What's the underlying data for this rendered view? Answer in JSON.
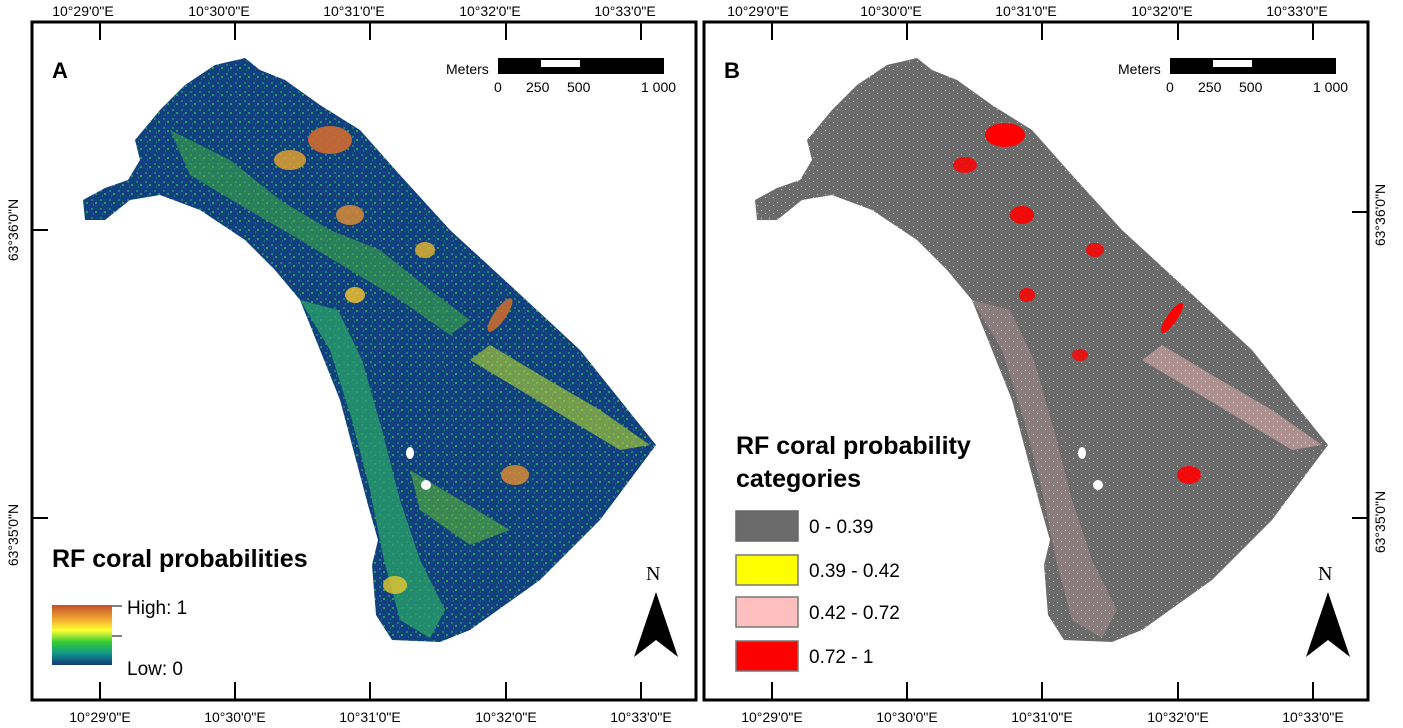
{
  "figure": {
    "colors": {
      "frame": "#000000",
      "water_background": "#ffffff",
      "category_low": "#6b6b6b",
      "category_lowmid": "#ffff00",
      "category_mid": "#ffbfbf",
      "category_high": "#ff0000",
      "ramp_high": "#c0502a",
      "ramp_mid": "#ffff33",
      "ramp_low": "#133a7a"
    },
    "axes": {
      "longitude_labels": [
        "10°29'0\"E",
        "10°30'0\"E",
        "10°31'0\"E",
        "10°32'0\"E",
        "10°33'0\"E"
      ],
      "latitude_labels": [
        "63°36'0\"N",
        "63°35'0\"N"
      ]
    },
    "scale_bar": {
      "unit_label": "Meters",
      "tick_labels": [
        "0",
        "250",
        "500",
        "1 000"
      ]
    },
    "north_arrow": {
      "label": "N"
    },
    "panel_a": {
      "letter": "A",
      "legend": {
        "title": "RF coral probabilities",
        "high_label": "High: 1",
        "low_label": "Low: 0"
      }
    },
    "panel_b": {
      "letter": "B",
      "legend": {
        "title_line1": "RF coral probability",
        "title_line2": "categories",
        "categories": [
          {
            "label": "0 - 0.39",
            "color": "#6b6b6b"
          },
          {
            "label": "0.39 - 0.42",
            "color": "#ffff00"
          },
          {
            "label": "0.42 - 0.72",
            "color": "#ffbfbf"
          },
          {
            "label": "0.72 - 1",
            "color": "#ff0000"
          }
        ]
      }
    }
  }
}
